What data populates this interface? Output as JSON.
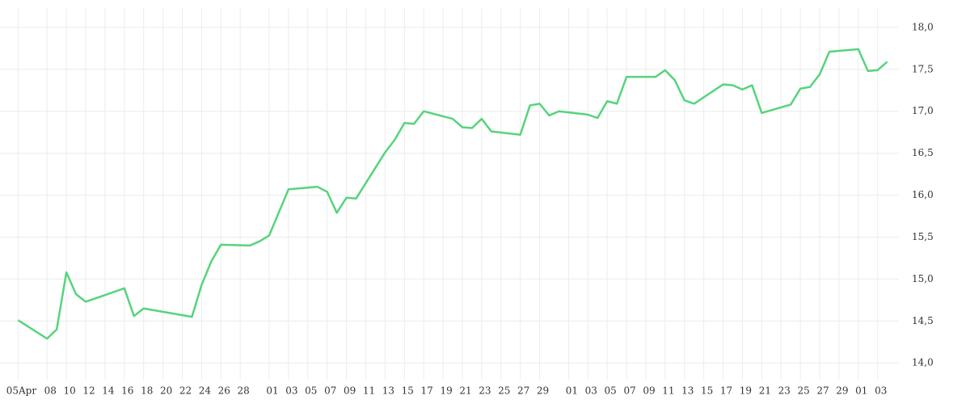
{
  "chart_data": {
    "type": "line",
    "x": [
      0,
      3,
      4,
      5,
      6,
      7,
      11,
      12,
      13,
      18,
      19,
      20,
      21,
      24,
      25,
      26,
      28,
      31,
      32,
      33,
      34,
      35,
      38,
      39,
      40,
      41,
      42,
      45,
      46,
      47,
      48,
      49,
      52,
      53,
      54,
      55,
      56,
      59,
      60,
      61,
      62,
      63,
      66,
      67,
      68,
      69,
      70,
      73,
      74,
      75,
      76,
      77,
      80,
      81,
      82,
      83,
      84,
      87,
      88,
      89,
      90
    ],
    "series": [
      {
        "color": "#56d47c",
        "values": [
          14.51,
          14.29,
          14.4,
          15.08,
          14.82,
          14.73,
          14.89,
          14.56,
          14.65,
          14.55,
          14.93,
          15.21,
          15.41,
          15.4,
          15.45,
          15.52,
          16.07,
          16.1,
          16.04,
          15.79,
          15.97,
          15.96,
          16.51,
          16.66,
          16.86,
          16.85,
          17.0,
          16.91,
          16.81,
          16.8,
          16.91,
          16.76,
          16.72,
          17.07,
          17.09,
          16.95,
          17.0,
          16.96,
          16.92,
          17.12,
          17.09,
          17.41,
          17.41,
          17.49,
          17.37,
          17.13,
          17.09,
          17.32,
          17.31,
          17.26,
          17.31,
          16.98,
          17.08,
          17.27,
          17.29,
          17.44,
          17.71,
          17.74,
          17.48,
          17.49,
          17.59
        ]
      }
    ],
    "xlim": [
      -0.2,
      91.2
    ],
    "xticks": [
      {
        "value": 0,
        "label": "05Apr"
      },
      {
        "value": 3,
        "label": "08"
      },
      {
        "value": 5,
        "label": "10"
      },
      {
        "value": 7,
        "label": "12"
      },
      {
        "value": 9,
        "label": "14"
      },
      {
        "value": 11,
        "label": "16"
      },
      {
        "value": 13,
        "label": "18"
      },
      {
        "value": 15,
        "label": "20"
      },
      {
        "value": 17,
        "label": "22"
      },
      {
        "value": 19,
        "label": "24"
      },
      {
        "value": 21,
        "label": "26"
      },
      {
        "value": 23,
        "label": "28"
      },
      {
        "value": 26,
        "label": "01"
      },
      {
        "value": 28,
        "label": "03"
      },
      {
        "value": 30,
        "label": "05"
      },
      {
        "value": 32,
        "label": "07"
      },
      {
        "value": 34,
        "label": "09"
      },
      {
        "value": 36,
        "label": "11"
      },
      {
        "value": 38,
        "label": "13"
      },
      {
        "value": 40,
        "label": "15"
      },
      {
        "value": 42,
        "label": "17"
      },
      {
        "value": 44,
        "label": "19"
      },
      {
        "value": 46,
        "label": "21"
      },
      {
        "value": 48,
        "label": "23"
      },
      {
        "value": 50,
        "label": "25"
      },
      {
        "value": 52,
        "label": "27"
      },
      {
        "value": 54,
        "label": "29"
      },
      {
        "value": 57,
        "label": "01"
      },
      {
        "value": 59,
        "label": "03"
      },
      {
        "value": 61,
        "label": "05"
      },
      {
        "value": 63,
        "label": "07"
      },
      {
        "value": 65,
        "label": "09"
      },
      {
        "value": 67,
        "label": "11"
      },
      {
        "value": 69,
        "label": "13"
      },
      {
        "value": 71,
        "label": "15"
      },
      {
        "value": 73,
        "label": "17"
      },
      {
        "value": 75,
        "label": "19"
      },
      {
        "value": 77,
        "label": "21"
      },
      {
        "value": 79,
        "label": "23"
      },
      {
        "value": 81,
        "label": "25"
      },
      {
        "value": 83,
        "label": "27"
      },
      {
        "value": 85,
        "label": "29"
      },
      {
        "value": 87,
        "label": "01"
      },
      {
        "value": 89,
        "label": "03"
      }
    ],
    "ylim": [
      13.8,
      18.23
    ],
    "yticks": [
      {
        "value": 14,
        "label": "14,0"
      },
      {
        "value": 14.5,
        "label": "14,5"
      },
      {
        "value": 15,
        "label": "15,0"
      },
      {
        "value": 15.5,
        "label": "15,5"
      },
      {
        "value": 16,
        "label": "16,0"
      },
      {
        "value": 16.5,
        "label": "16,5"
      },
      {
        "value": 17,
        "label": "17,0"
      },
      {
        "value": 17.5,
        "label": "17,5"
      },
      {
        "value": 18,
        "label": "18,0"
      }
    ],
    "grid": true
  }
}
